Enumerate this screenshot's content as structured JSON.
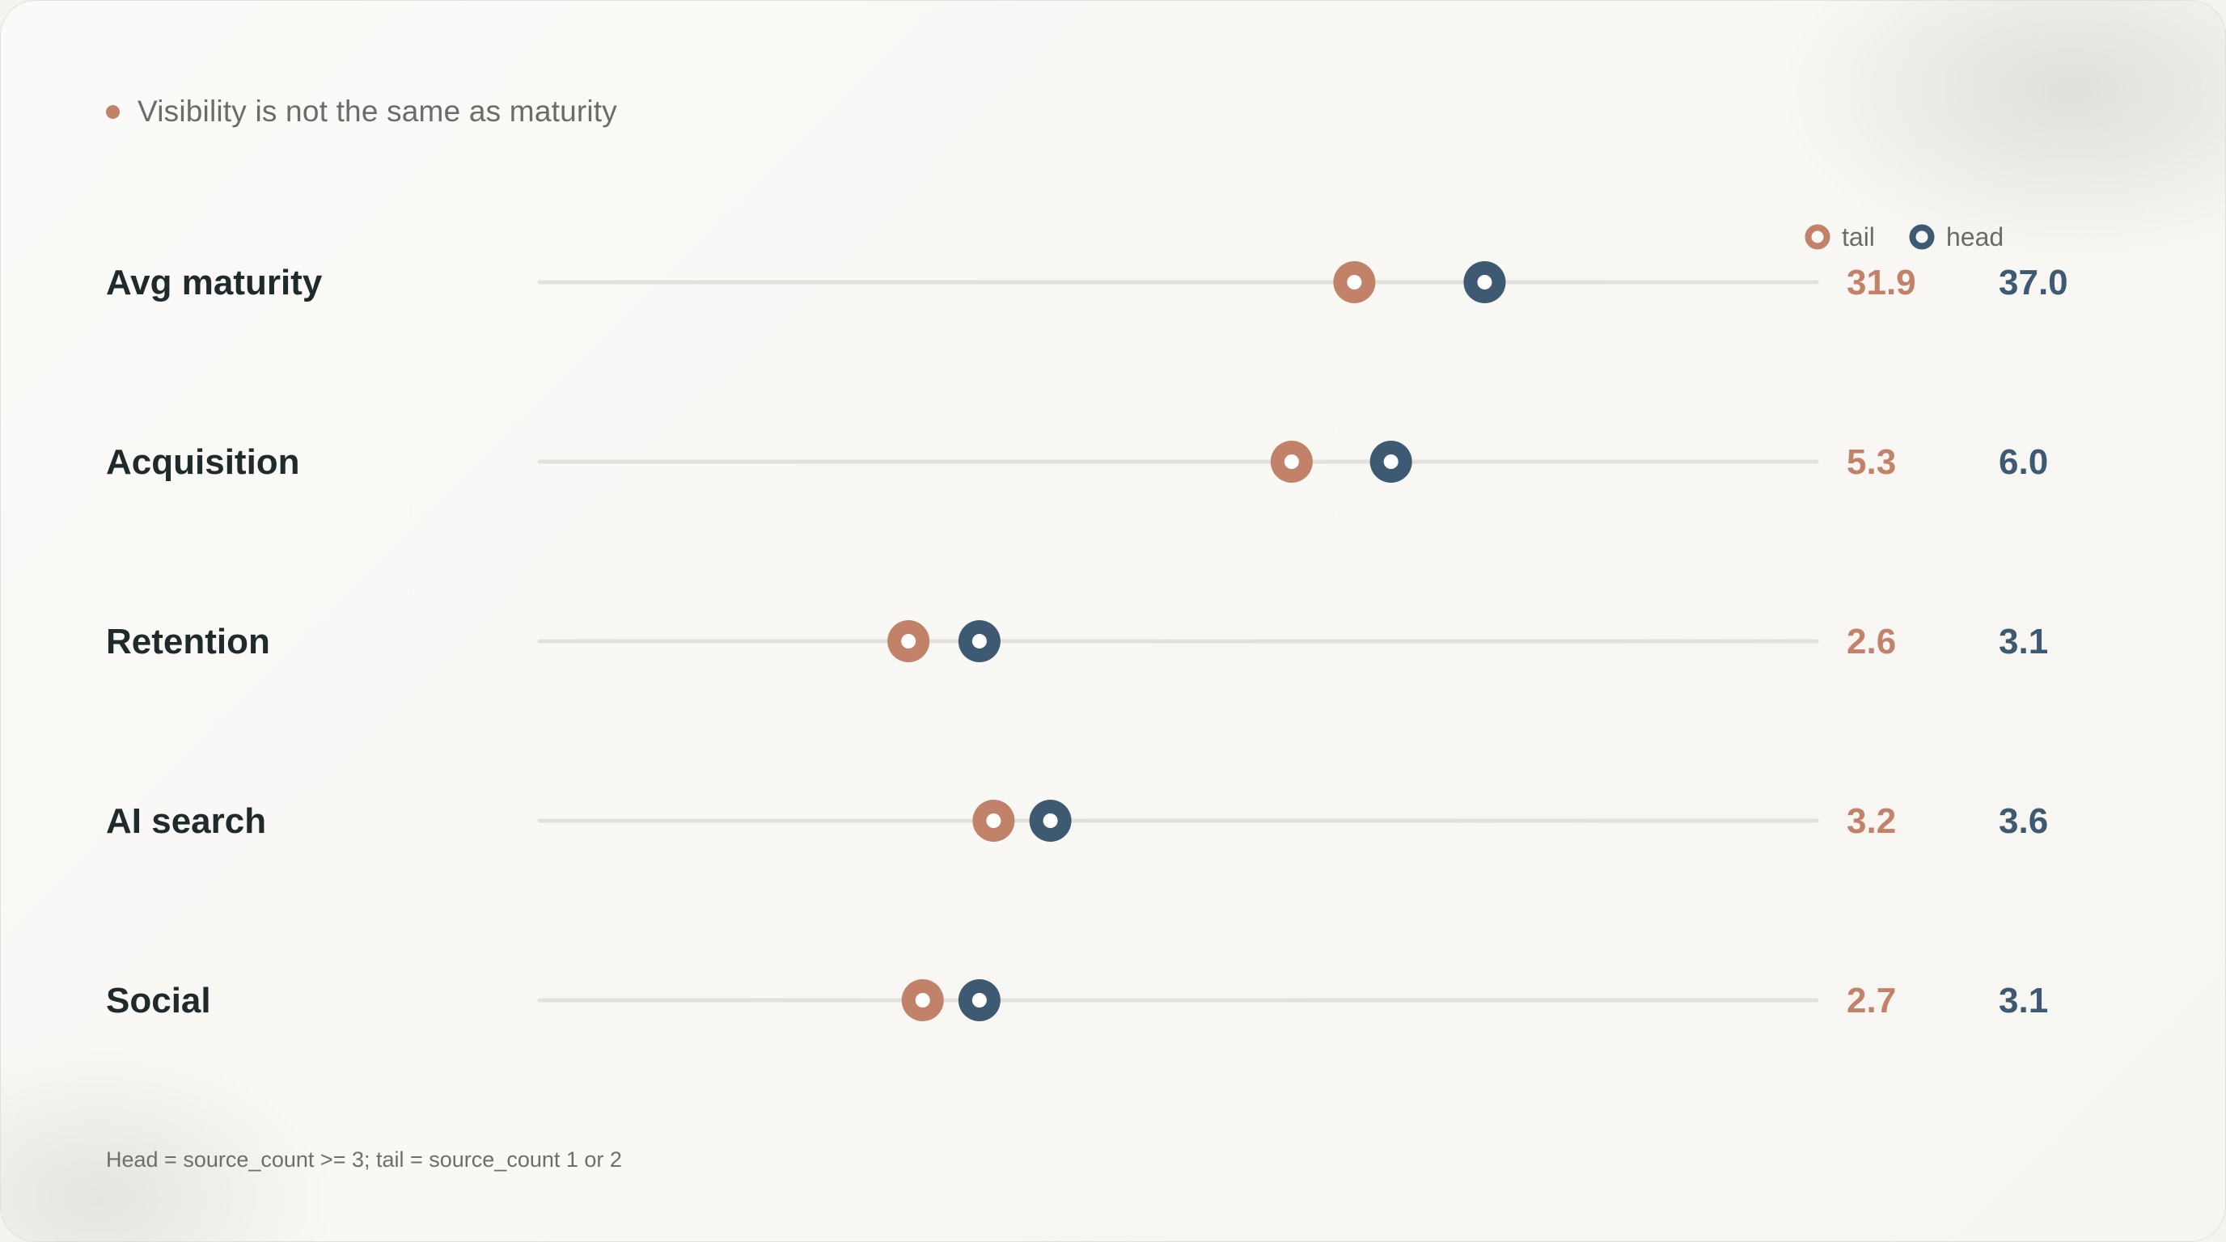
{
  "header": {
    "title": "Visibility is not the same as maturity"
  },
  "footnote": "Head = source_count >= 3; tail = source_count 1 or 2",
  "colors": {
    "tail": "#c2826a",
    "head": "#3e5a72",
    "track": "#e3e1dc",
    "header_dot": "#c2826a"
  },
  "chart_data": {
    "type": "scatter",
    "subtype": "dumbbell",
    "legend": {
      "placement": "top-right",
      "entries": [
        "tail",
        "head"
      ]
    },
    "categories": [
      "Avg maturity",
      "Acquisition",
      "Retention",
      "AI search",
      "Social"
    ],
    "series": [
      {
        "name": "tail",
        "values": [
          31.9,
          5.3,
          2.6,
          3.2,
          2.7
        ]
      },
      {
        "name": "head",
        "values": [
          37.0,
          6.0,
          3.1,
          3.6,
          3.1
        ]
      }
    ],
    "value_labels": {
      "tail": [
        "31.9",
        "5.3",
        "2.6",
        "3.2",
        "2.7"
      ],
      "head": [
        "37.0",
        "6.0",
        "3.1",
        "3.6",
        "3.1"
      ]
    },
    "row_scales": [
      [
        0,
        50
      ],
      [
        0,
        9
      ],
      [
        0,
        9
      ],
      [
        0,
        9
      ],
      [
        0,
        9
      ]
    ],
    "grid": false
  }
}
